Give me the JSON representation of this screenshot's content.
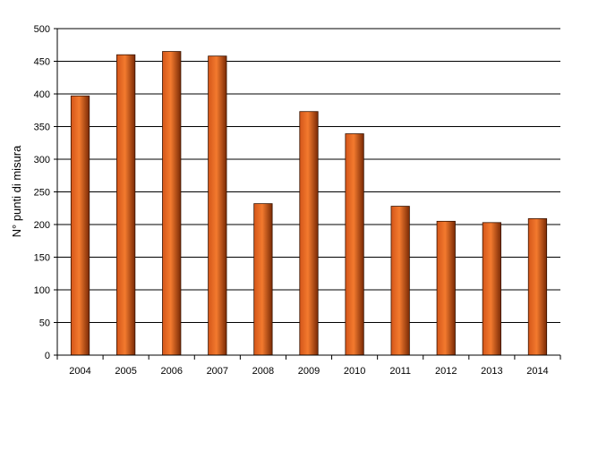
{
  "colors": {
    "bar_light": "#f37a2e",
    "bar_mid": "#d4561a",
    "bar_dark": "#7a2a05",
    "bar_stroke": "#3a1400",
    "grid": "#000000",
    "axis": "#000000",
    "background": "#ffffff"
  },
  "chart_data": {
    "type": "bar",
    "title": "",
    "xlabel": "",
    "ylabel": "N° punti di misura",
    "categories": [
      "2004",
      "2005",
      "2006",
      "2007",
      "2008",
      "2009",
      "2010",
      "2011",
      "2012",
      "2013",
      "2014"
    ],
    "values": [
      397,
      460,
      465,
      458,
      232,
      373,
      339,
      228,
      205,
      203,
      209
    ],
    "ylim": [
      0,
      500
    ],
    "yticks": [
      0,
      50,
      100,
      150,
      200,
      250,
      300,
      350,
      400,
      450,
      500
    ],
    "grid": true,
    "legend": "none"
  }
}
